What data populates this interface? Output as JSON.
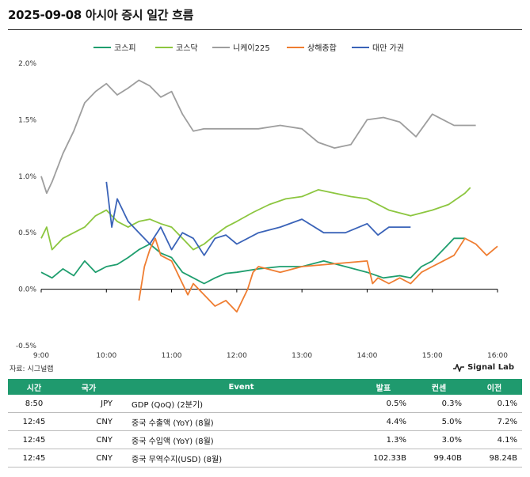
{
  "title": "2025-09-08 아시아 증시 일간 흐름",
  "source": "자료: 시그널랩",
  "brand": "Signal Lab",
  "chart_data": {
    "type": "line",
    "x_ticks": [
      "9:00",
      "10:00",
      "11:00",
      "12:00",
      "13:00",
      "14:00",
      "15:00",
      "16:00"
    ],
    "y_ticks": [
      "2.0%",
      "1.5%",
      "1.0%",
      "0.5%",
      "0.0%",
      "-0.5%"
    ],
    "ylim": [
      -0.5,
      2.0
    ],
    "xlim": [
      "9:00",
      "16:00"
    ],
    "legend_position": "top",
    "series": [
      {
        "name": "코스피",
        "color": "#1f9e6e",
        "x": [
          "9:00",
          "9:10",
          "9:20",
          "9:30",
          "9:40",
          "9:50",
          "10:00",
          "10:10",
          "10:20",
          "10:30",
          "10:40",
          "10:50",
          "11:00",
          "11:10",
          "11:20",
          "11:30",
          "11:40",
          "11:50",
          "12:00",
          "12:20",
          "12:40",
          "13:00",
          "13:20",
          "13:40",
          "14:00",
          "14:15",
          "14:30",
          "14:40",
          "14:50",
          "15:00",
          "15:10",
          "15:20",
          "15:30"
        ],
        "y": [
          0.15,
          0.1,
          0.18,
          0.12,
          0.25,
          0.15,
          0.2,
          0.22,
          0.28,
          0.35,
          0.4,
          0.32,
          0.28,
          0.15,
          0.1,
          0.05,
          0.1,
          0.14,
          0.15,
          0.18,
          0.2,
          0.2,
          0.25,
          0.2,
          0.15,
          0.1,
          0.12,
          0.1,
          0.2,
          0.25,
          0.35,
          0.45,
          0.45
        ]
      },
      {
        "name": "코스닥",
        "color": "#8cc63f",
        "x": [
          "9:00",
          "9:05",
          "9:10",
          "9:20",
          "9:30",
          "9:40",
          "9:50",
          "10:00",
          "10:10",
          "10:20",
          "10:30",
          "10:40",
          "10:50",
          "11:00",
          "11:10",
          "11:20",
          "11:30",
          "11:40",
          "11:50",
          "12:00",
          "12:15",
          "12:30",
          "12:45",
          "13:00",
          "13:15",
          "13:30",
          "13:45",
          "14:00",
          "14:20",
          "14:40",
          "15:00",
          "15:15",
          "15:30",
          "15:35"
        ],
        "y": [
          0.45,
          0.55,
          0.35,
          0.45,
          0.5,
          0.55,
          0.65,
          0.7,
          0.6,
          0.55,
          0.6,
          0.62,
          0.58,
          0.55,
          0.45,
          0.35,
          0.4,
          0.48,
          0.55,
          0.6,
          0.68,
          0.75,
          0.8,
          0.82,
          0.88,
          0.85,
          0.82,
          0.8,
          0.7,
          0.65,
          0.7,
          0.75,
          0.85,
          0.9
        ]
      },
      {
        "name": "니케이225",
        "color": "#9e9e9e",
        "x": [
          "9:00",
          "9:05",
          "9:10",
          "9:20",
          "9:30",
          "9:40",
          "9:50",
          "10:00",
          "10:10",
          "10:20",
          "10:30",
          "10:40",
          "10:50",
          "11:00",
          "11:10",
          "11:20",
          "11:30",
          "11:40",
          "12:00",
          "12:20",
          "12:40",
          "13:00",
          "13:15",
          "13:30",
          "13:45",
          "14:00",
          "14:15",
          "14:30",
          "14:45",
          "15:00",
          "15:10",
          "15:20",
          "15:30",
          "15:40"
        ],
        "y": [
          1.0,
          0.85,
          0.95,
          1.2,
          1.4,
          1.65,
          1.75,
          1.82,
          1.72,
          1.78,
          1.85,
          1.8,
          1.7,
          1.75,
          1.55,
          1.4,
          1.42,
          1.42,
          1.42,
          1.42,
          1.45,
          1.42,
          1.3,
          1.25,
          1.28,
          1.5,
          1.52,
          1.48,
          1.35,
          1.55,
          1.5,
          1.45,
          1.45,
          1.45
        ]
      },
      {
        "name": "상해종합",
        "color": "#ef7d31",
        "x": [
          "10:30",
          "10:35",
          "10:40",
          "10:45",
          "10:50",
          "11:00",
          "11:10",
          "11:15",
          "11:20",
          "11:30",
          "11:40",
          "11:50",
          "12:00",
          "12:10",
          "12:15",
          "12:20",
          "12:40",
          "13:00",
          "14:00",
          "14:05",
          "14:10",
          "14:20",
          "14:30",
          "14:40",
          "14:50",
          "15:00",
          "15:10",
          "15:20",
          "15:30",
          "15:40",
          "15:50",
          "16:00"
        ],
        "y": [
          -0.1,
          0.2,
          0.35,
          0.45,
          0.3,
          0.25,
          0.05,
          -0.05,
          0.05,
          -0.05,
          -0.15,
          -0.1,
          -0.2,
          0.0,
          0.15,
          0.2,
          0.15,
          0.2,
          0.25,
          0.05,
          0.1,
          0.05,
          0.1,
          0.05,
          0.15,
          0.2,
          0.25,
          0.3,
          0.45,
          0.4,
          0.3,
          0.38
        ]
      },
      {
        "name": "대만 가권",
        "color": "#3a63b8",
        "x": [
          "10:00",
          "10:05",
          "10:10",
          "10:20",
          "10:30",
          "10:40",
          "10:50",
          "11:00",
          "11:10",
          "11:20",
          "11:30",
          "11:40",
          "11:50",
          "12:00",
          "12:20",
          "12:40",
          "13:00",
          "13:20",
          "13:40",
          "14:00",
          "14:10",
          "14:20",
          "14:30",
          "14:40"
        ],
        "y": [
          0.95,
          0.55,
          0.8,
          0.6,
          0.5,
          0.4,
          0.55,
          0.35,
          0.5,
          0.45,
          0.3,
          0.45,
          0.48,
          0.4,
          0.5,
          0.55,
          0.62,
          0.5,
          0.5,
          0.58,
          0.48,
          0.55,
          0.55,
          0.55
        ]
      }
    ]
  },
  "table": {
    "headers": [
      "시간",
      "국가",
      "Event",
      "발표",
      "컨센",
      "이전"
    ],
    "rows": [
      [
        "8:50",
        "JPY",
        "GDP (QoQ) (2분기)",
        "0.5%",
        "0.3%",
        "0.1%"
      ],
      [
        "12:45",
        "CNY",
        "중국 수출액 (YoY) (8월)",
        "4.4%",
        "5.0%",
        "7.2%"
      ],
      [
        "12:45",
        "CNY",
        "중국 수입액 (YoY) (8월)",
        "1.3%",
        "3.0%",
        "4.1%"
      ],
      [
        "12:45",
        "CNY",
        "중국 무역수지(USD) (8월)",
        "102.33B",
        "99.40B",
        "98.24B"
      ]
    ]
  }
}
